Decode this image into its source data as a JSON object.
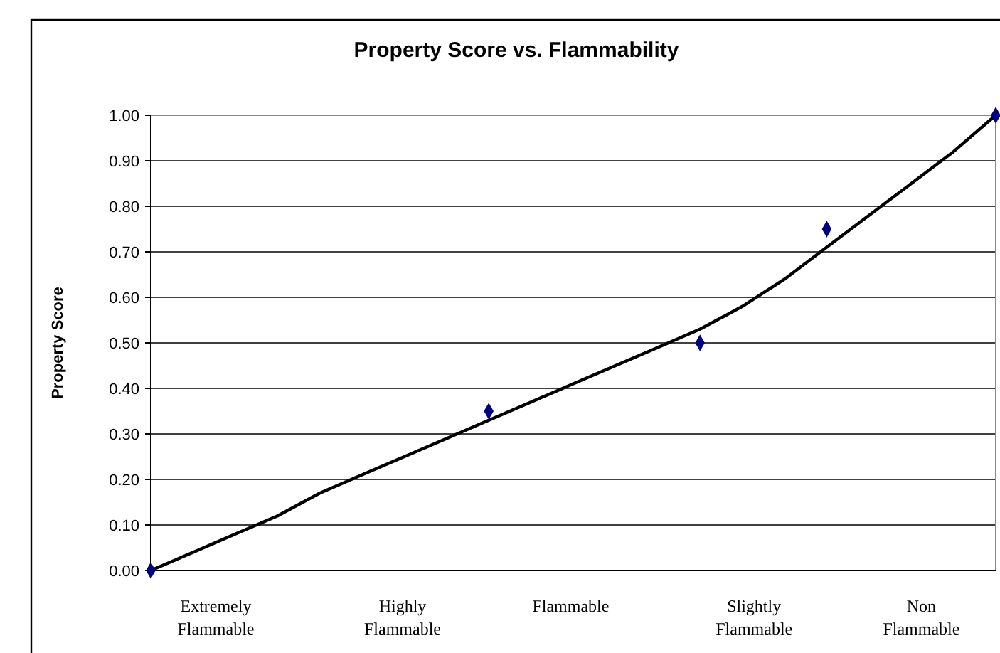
{
  "chart_data": {
    "type": "scatter",
    "title": "Property Score vs. Flammability",
    "ylabel": "Property Score",
    "categories": [
      null,
      null,
      null,
      null,
      null,
      null,
      null,
      null,
      null,
      null,
      null,
      null,
      null,
      null,
      null,
      null,
      null,
      null,
      null,
      null,
      null
    ],
    "annotations": [
      "Extremely\nFlammable",
      "Highly\nFlammable",
      "Flammable",
      "Slightly\nFlammable",
      "Non\nFlammable"
    ],
    "ylim": [
      0,
      1
    ],
    "yticks": [
      {
        "value": 0,
        "label": "0.00"
      },
      {
        "value": 0.1,
        "label": "0.10"
      },
      {
        "value": 0.2,
        "label": "0.20"
      },
      {
        "value": 0.3,
        "label": "0.30"
      },
      {
        "value": 0.4,
        "label": "0.40"
      },
      {
        "value": 0.5,
        "label": "0.50"
      },
      {
        "value": 0.6,
        "label": "0.60"
      },
      {
        "value": 0.7,
        "label": "0.70"
      },
      {
        "value": 0.8,
        "label": "0.80"
      },
      {
        "value": 0.9,
        "label": "0.90"
      },
      {
        "value": 1,
        "label": "1.00"
      }
    ],
    "grid": "y",
    "series": [
      {
        "color": "#000080",
        "marker": "diamond",
        "values": [
          0,
          null,
          null,
          null,
          null,
          null,
          null,
          null,
          0.35,
          null,
          null,
          null,
          null,
          0.5,
          null,
          null,
          0.75,
          null,
          null,
          null,
          1
        ]
      },
      {
        "type": "line",
        "color": "#000000",
        "line_style": "solid",
        "values": [
          0,
          0.04,
          0.08,
          0.12,
          0.17,
          0.21,
          0.25,
          0.29,
          0.33,
          0.37,
          0.41,
          0.45,
          0.49,
          0.53,
          0.58,
          0.64,
          0.71,
          0.78,
          0.85,
          0.92,
          1
        ]
      }
    ]
  }
}
